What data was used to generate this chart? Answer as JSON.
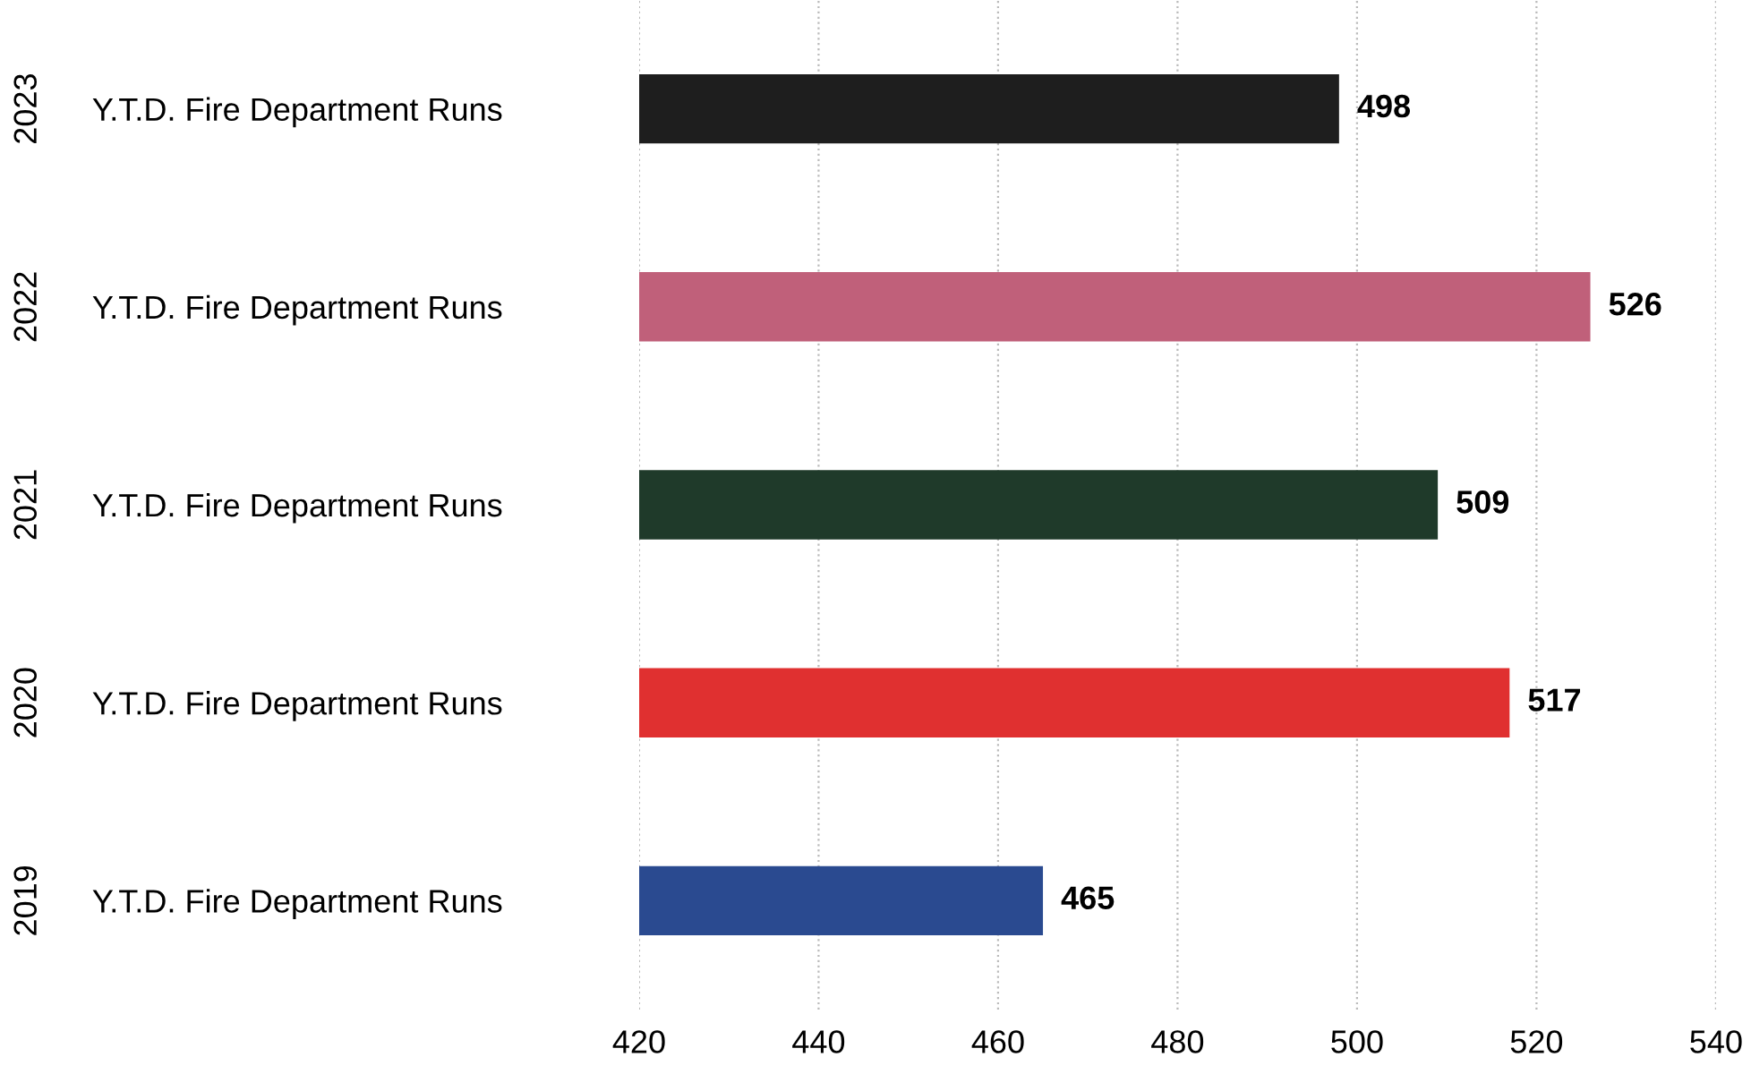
{
  "chart_data": {
    "type": "bar",
    "orientation": "horizontal",
    "categories": [
      "Y.T.D. Fire Department Runs",
      "Y.T.D. Fire Department Runs",
      "Y.T.D. Fire Department Runs",
      "Y.T.D. Fire Department Runs",
      "Y.T.D. Fire Department Runs"
    ],
    "values": [
      498,
      526,
      509,
      517,
      465
    ],
    "colors": [
      "#1e1e1e",
      "#c0607a",
      "#1f3a2a",
      "#e03030",
      "#2a4a90"
    ],
    "annotations": [
      "2023",
      "2022",
      "2021",
      "2020",
      "2019"
    ],
    "xlim": [
      420,
      540
    ],
    "xticks": [
      420,
      440,
      460,
      480,
      500,
      520,
      540
    ],
    "grid": "x",
    "data_labels": true
  }
}
